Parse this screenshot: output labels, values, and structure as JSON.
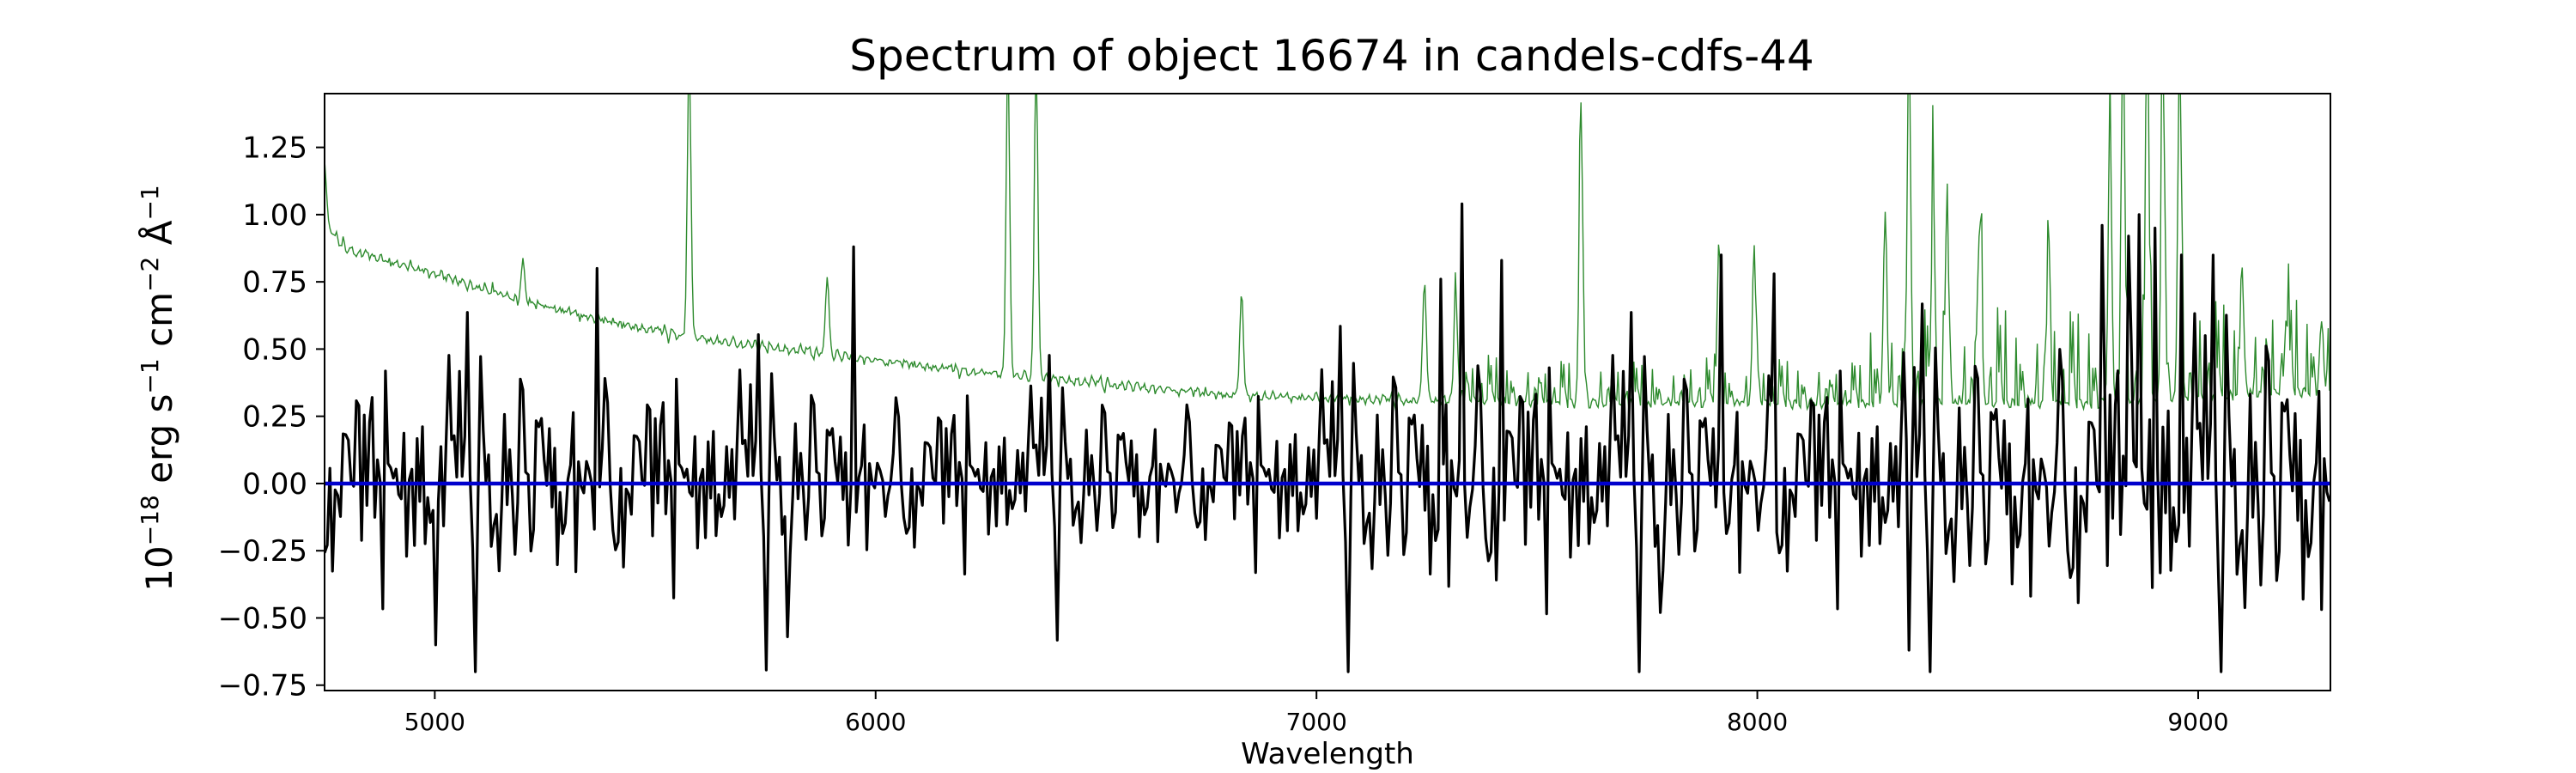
{
  "chart_data": {
    "type": "line",
    "title": "Spectrum of object 16674 in candels-cdfs-44",
    "xlabel": "Wavelength",
    "ylabel_base": "10",
    "ylabel_base_exp": "−18",
    "ylabel_mid": " erg s",
    "ylabel_s_exp": "−1",
    "ylabel_cm": " cm",
    "ylabel_cm_exp": "−2",
    "ylabel_ang": " Å",
    "ylabel_ang_exp": "−1",
    "xlim": [
      4750,
      9300
    ],
    "ylim": [
      -0.77,
      1.45
    ],
    "x_ticks": [
      5000,
      6000,
      7000,
      8000,
      9000
    ],
    "x_tick_labels": [
      "5000",
      "6000",
      "7000",
      "8000",
      "9000"
    ],
    "y_ticks": [
      -0.75,
      -0.5,
      -0.25,
      0.0,
      0.25,
      0.5,
      0.75,
      1.0,
      1.25
    ],
    "y_tick_labels": [
      "−0.75",
      "−0.50",
      "−0.25",
      "0.00",
      "0.25",
      "0.50",
      "0.75",
      "1.00",
      "1.25"
    ],
    "grid": false,
    "series": [
      {
        "color": "#2e8b2e",
        "style": "thin",
        "continuum_knots": [
          [
            4750,
            1.2
          ],
          [
            4760,
            0.95
          ],
          [
            4800,
            0.87
          ],
          [
            5000,
            0.78
          ],
          [
            5200,
            0.68
          ],
          [
            5400,
            0.6
          ],
          [
            5600,
            0.54
          ],
          [
            5800,
            0.5
          ],
          [
            6000,
            0.46
          ],
          [
            6200,
            0.42
          ],
          [
            6400,
            0.39
          ],
          [
            6600,
            0.36
          ],
          [
            6800,
            0.33
          ],
          [
            7000,
            0.32
          ],
          [
            7200,
            0.31
          ],
          [
            7400,
            0.31
          ],
          [
            7600,
            0.3
          ],
          [
            7800,
            0.3
          ],
          [
            8000,
            0.3
          ],
          [
            8200,
            0.3
          ],
          [
            8400,
            0.3
          ],
          [
            8600,
            0.3
          ],
          [
            8800,
            0.3
          ],
          [
            9000,
            0.32
          ],
          [
            9300,
            0.35
          ]
        ],
        "emission_lines": [
          [
            5200,
            0.82
          ],
          [
            5577,
            1.6
          ],
          [
            5890,
            0.78
          ],
          [
            6300,
            1.6
          ],
          [
            6364,
            1.6
          ],
          [
            6830,
            0.7
          ],
          [
            7245,
            0.77
          ],
          [
            7316,
            0.7
          ],
          [
            7600,
            1.42
          ],
          [
            7913,
            0.92
          ],
          [
            7993,
            0.85
          ],
          [
            8290,
            1.0
          ],
          [
            8344,
            1.6
          ],
          [
            8399,
            1.1
          ],
          [
            8430,
            1.0
          ],
          [
            8505,
            1.0
          ],
          [
            8660,
            0.8
          ],
          [
            8800,
            1.3
          ],
          [
            8830,
            1.6
          ],
          [
            8885,
            1.6
          ],
          [
            8920,
            1.6
          ],
          [
            8958,
            1.6
          ],
          [
            9100,
            0.75
          ],
          [
            9200,
            0.62
          ],
          [
            9280,
            0.6
          ]
        ]
      },
      {
        "color": "#000000",
        "style": "thick",
        "noise_sigma_knots": [
          [
            4750,
            0.22
          ],
          [
            5300,
            0.22
          ],
          [
            6000,
            0.17
          ],
          [
            6800,
            0.15
          ],
          [
            7300,
            0.25
          ],
          [
            7600,
            0.22
          ],
          [
            8000,
            0.22
          ],
          [
            8300,
            0.22
          ],
          [
            8800,
            0.3
          ],
          [
            9300,
            0.3
          ]
        ],
        "peaks": [
          [
            5000,
            -0.6
          ],
          [
            5370,
            0.8
          ],
          [
            5800,
            -0.57
          ],
          [
            5950,
            0.88
          ],
          [
            7280,
            0.76
          ],
          [
            7330,
            1.04
          ],
          [
            7420,
            0.83
          ],
          [
            7780,
            -0.48
          ],
          [
            7920,
            0.85
          ],
          [
            8040,
            0.78
          ],
          [
            8345,
            -0.62
          ],
          [
            8780,
            0.96
          ],
          [
            8840,
            0.92
          ],
          [
            8865,
            1.0
          ],
          [
            8900,
            0.95
          ],
          [
            8960,
            0.85
          ]
        ]
      },
      {
        "color": "#0000cd",
        "style": "zero-line",
        "values": [
          [
            4750,
            0.0
          ],
          [
            9300,
            0.0
          ]
        ]
      }
    ]
  }
}
